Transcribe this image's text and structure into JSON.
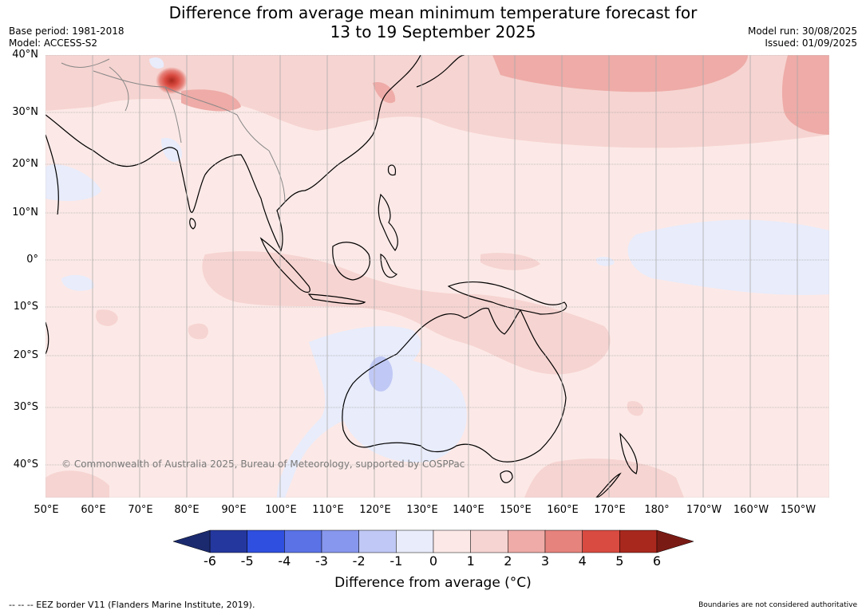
{
  "title_line1": "Difference from average mean minimum temperature forecast for",
  "title_line2": "13 to 19 September 2025",
  "base_period": "Base period: 1981-2018",
  "model": "Model: ACCESS-S2",
  "model_run": "Model run: 30/08/2025",
  "issued": "Issued: 01/09/2025",
  "copyright": "© Commonwealth of Australia 2025, Bureau of Meteorology, supported by COSPPac",
  "lat_labels": [
    "40°N",
    "30°N",
    "20°N",
    "10°N",
    "0°",
    "10°S",
    "20°S",
    "30°S",
    "40°S"
  ],
  "lon_labels": [
    "50°E",
    "60°E",
    "70°E",
    "80°E",
    "90°E",
    "100°E",
    "110°E",
    "120°E",
    "130°E",
    "140°E",
    "150°E",
    "160°E",
    "170°E",
    "180°",
    "170°W",
    "160°W",
    "150°W"
  ],
  "colorbar": {
    "ticks": [
      "-6",
      "-5",
      "-4",
      "-3",
      "-2",
      "-1",
      "0",
      "1",
      "2",
      "3",
      "4",
      "5",
      "6"
    ],
    "colors": [
      "#24379f",
      "#2f4fe0",
      "#5a72e6",
      "#8797ed",
      "#c0c8f5",
      "#e8ecfb",
      "#fce9e7",
      "#f6d4d1",
      "#eeaba7",
      "#e6837c",
      "#d94a40",
      "#a9281e"
    ],
    "under_color": "#1b2a6e",
    "over_color": "#7a1a14",
    "label": "Difference from average (°C)"
  },
  "footer_left": "--  --  -- EEZ border V11 (Flanders Marine Institute, 2019).",
  "footer_right": "Boundaries are not considered authoritative"
}
